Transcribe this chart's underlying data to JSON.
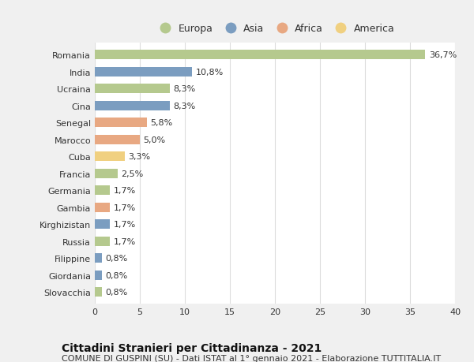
{
  "countries": [
    "Romania",
    "India",
    "Ucraina",
    "Cina",
    "Senegal",
    "Marocco",
    "Cuba",
    "Francia",
    "Germania",
    "Gambia",
    "Kirghizistan",
    "Russia",
    "Filippine",
    "Giordania",
    "Slovacchia"
  ],
  "values": [
    36.7,
    10.8,
    8.3,
    8.3,
    5.8,
    5.0,
    3.3,
    2.5,
    1.7,
    1.7,
    1.7,
    1.7,
    0.8,
    0.8,
    0.8
  ],
  "labels": [
    "36,7%",
    "10,8%",
    "8,3%",
    "8,3%",
    "5,8%",
    "5,0%",
    "3,3%",
    "2,5%",
    "1,7%",
    "1,7%",
    "1,7%",
    "1,7%",
    "0,8%",
    "0,8%",
    "0,8%"
  ],
  "continents": [
    "Europa",
    "Asia",
    "Europa",
    "Asia",
    "Africa",
    "Africa",
    "America",
    "Europa",
    "Europa",
    "Africa",
    "Asia",
    "Europa",
    "Asia",
    "Asia",
    "Europa"
  ],
  "colors": {
    "Europa": "#b5c98e",
    "Asia": "#7b9dc0",
    "Africa": "#e8a882",
    "America": "#f0d080"
  },
  "legend_order": [
    "Europa",
    "Asia",
    "Africa",
    "America"
  ],
  "xlim": [
    0,
    40
  ],
  "xticks": [
    0,
    5,
    10,
    15,
    20,
    25,
    30,
    35,
    40
  ],
  "title": "Cittadini Stranieri per Cittadinanza - 2021",
  "subtitle": "COMUNE DI GUSPINI (SU) - Dati ISTAT al 1° gennaio 2021 - Elaborazione TUTTITALIA.IT",
  "outer_bg_color": "#f0f0f0",
  "plot_bg_color": "#ffffff",
  "grid_color": "#dddddd",
  "title_fontsize": 10,
  "subtitle_fontsize": 8,
  "label_fontsize": 8,
  "tick_fontsize": 8,
  "bar_height": 0.55
}
